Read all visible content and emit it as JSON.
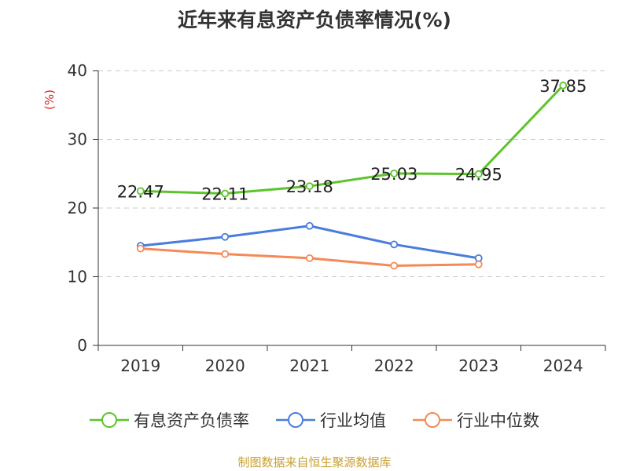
{
  "title": "近年来有息资产负债率情况(%)",
  "source": "制图数据来自恒生聚源数据库",
  "chart_data": {
    "type": "line",
    "title": "近年来有息资产负债率情况(%)",
    "ylabel": "(%)",
    "xlabel": "",
    "categories": [
      "2019",
      "2020",
      "2021",
      "2022",
      "2023",
      "2024"
    ],
    "ylim": [
      0,
      40
    ],
    "yticks": [
      0,
      10,
      20,
      30,
      40
    ],
    "grid": true,
    "legend_position": "bottom",
    "series": [
      {
        "name": "有息资产负债率",
        "color": "#5cc42a",
        "show_labels": true,
        "labels": [
          "22.47",
          "22.11",
          "23.18",
          "25.03",
          "24.95",
          "37.85"
        ],
        "values": [
          22.47,
          22.11,
          23.18,
          25.03,
          24.95,
          37.85
        ]
      },
      {
        "name": "行业均值",
        "color": "#4a7ddb",
        "show_labels": false,
        "values": [
          14.5,
          15.8,
          17.4,
          14.7,
          12.7,
          null
        ]
      },
      {
        "name": "行业中位数",
        "color": "#f38a57",
        "show_labels": false,
        "values": [
          14.1,
          13.3,
          12.7,
          11.6,
          11.8,
          null
        ]
      }
    ]
  }
}
